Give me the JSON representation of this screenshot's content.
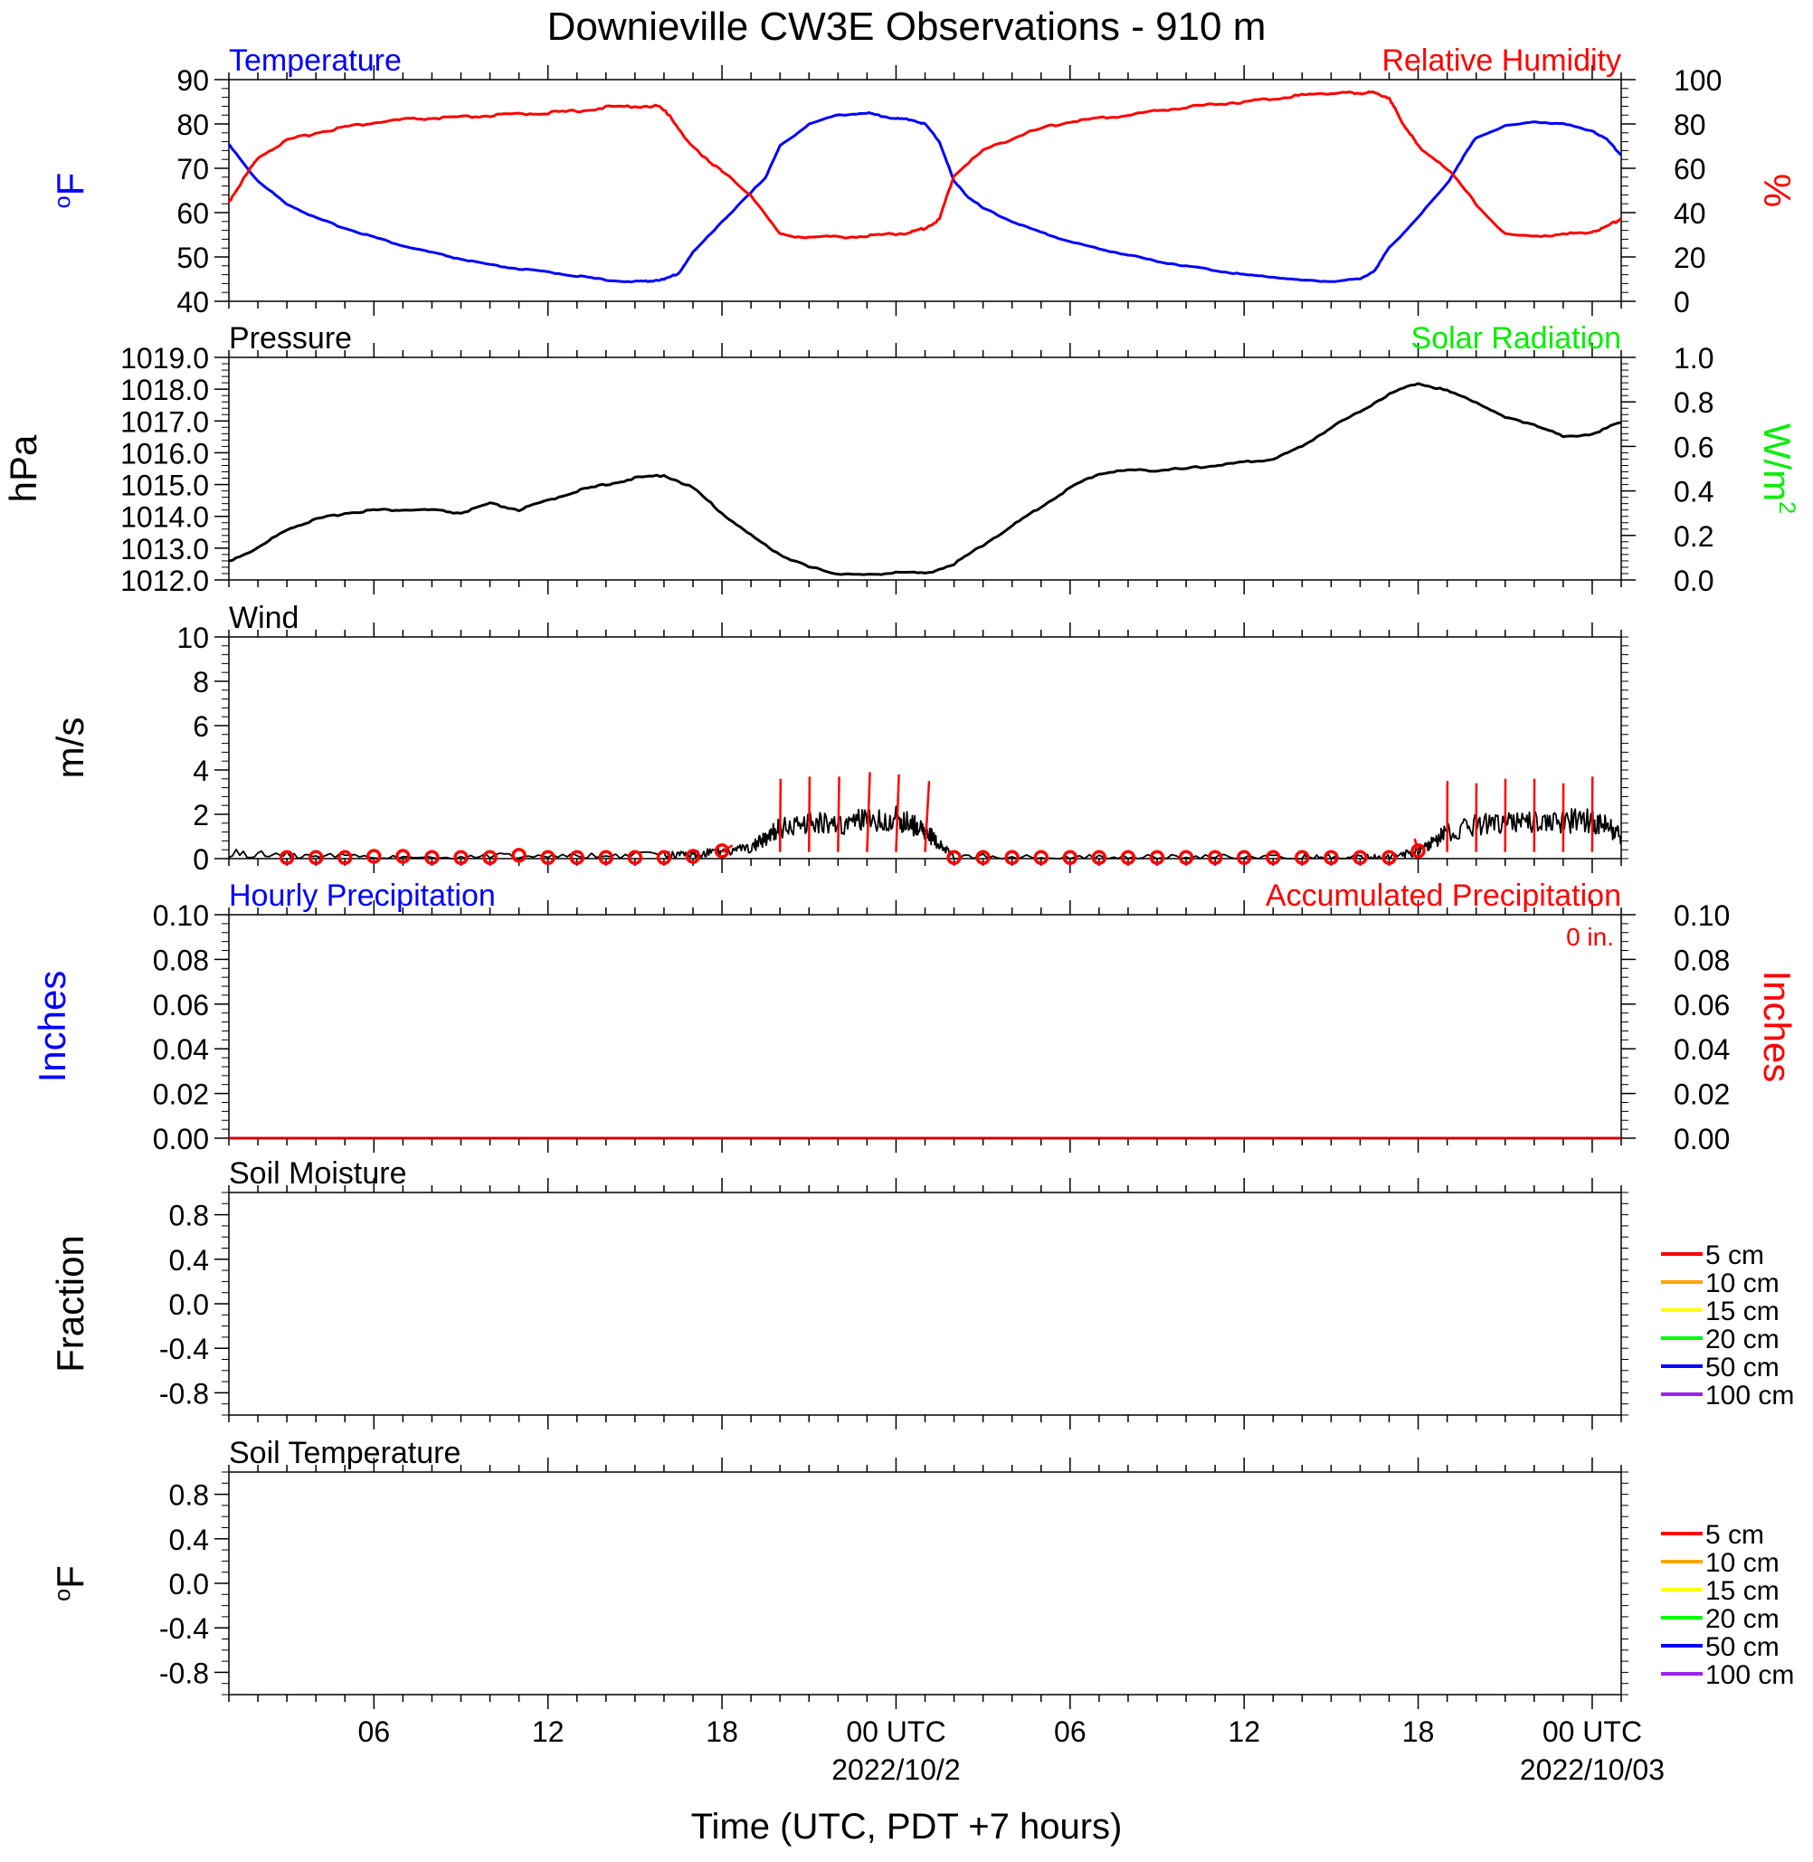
{
  "title": "Downieville CW3E Observations - 910 m",
  "xlabel": "Time (UTC, PDT +7 hours)",
  "colors": {
    "temperature": "#0000ff",
    "humidity": "#ff0000",
    "pressure": "#000000",
    "solar": "#00ee00",
    "wind": "#000000",
    "gust": "#ff0000",
    "precip_hourly": "#0000ff",
    "precip_accum": "#ff0000",
    "soil_5": "#ff0000",
    "soil_10": "#ffa500",
    "soil_15": "#ffff00",
    "soil_20": "#00ff00",
    "soil_50": "#0000ff",
    "soil_100": "#a020f0"
  },
  "x_axis": {
    "start_hour": 1,
    "end_hour": 49,
    "ticks": [
      {
        "hour": 6,
        "label": "06",
        "sub": ""
      },
      {
        "hour": 12,
        "label": "12",
        "sub": ""
      },
      {
        "hour": 18,
        "label": "18",
        "sub": ""
      },
      {
        "hour": 24,
        "label": "00 UTC",
        "sub": "2022/10/2"
      },
      {
        "hour": 30,
        "label": "06",
        "sub": ""
      },
      {
        "hour": 36,
        "label": "12",
        "sub": ""
      },
      {
        "hour": 42,
        "label": "18",
        "sub": ""
      },
      {
        "hour": 48,
        "label": "00 UTC",
        "sub": "2022/10/03"
      }
    ]
  },
  "panels": {
    "temp_rh": {
      "left_title": "Temperature",
      "right_title": "Relative Humidity",
      "left_unit": "oF",
      "right_unit": "%",
      "left_ticks": [
        "40",
        "50",
        "60",
        "70",
        "80",
        "90"
      ],
      "right_ticks": [
        "0",
        "20",
        "40",
        "60",
        "80",
        "100"
      ]
    },
    "pressure": {
      "left_title": "Pressure",
      "right_title": "Solar Radiation",
      "left_unit": "hPa",
      "right_unit": "W/m2",
      "left_ticks": [
        "1012.0",
        "1013.0",
        "1014.0",
        "1015.0",
        "1016.0",
        "1017.0",
        "1018.0",
        "1019.0"
      ],
      "right_ticks": [
        "0.0",
        "0.2",
        "0.4",
        "0.6",
        "0.8",
        "1.0"
      ]
    },
    "wind": {
      "left_title": "Wind",
      "left_unit": "m/s",
      "left_ticks": [
        "0",
        "2",
        "4",
        "6",
        "8",
        "10"
      ]
    },
    "precip": {
      "left_title": "Hourly Precipitation",
      "right_title": "Accumulated Precipitation",
      "total_label": "0 in.",
      "left_unit": "Inches",
      "right_unit": "Inches",
      "left_ticks": [
        "0.00",
        "0.02",
        "0.04",
        "0.06",
        "0.08",
        "0.10"
      ],
      "right_ticks": [
        "0.00",
        "0.02",
        "0.04",
        "0.06",
        "0.08",
        "0.10"
      ]
    },
    "soil_moisture": {
      "left_title": "Soil Moisture",
      "left_unit": "Fraction",
      "left_ticks": [
        "-0.8",
        "-0.4",
        "0.0",
        "0.4",
        "0.8"
      ],
      "legend": [
        "5 cm",
        "10 cm",
        "15 cm",
        "20 cm",
        "50 cm",
        "100 cm"
      ]
    },
    "soil_temp": {
      "left_title": "Soil Temperature",
      "left_unit": "oF",
      "left_ticks": [
        "-0.8",
        "-0.4",
        "0.0",
        "0.4",
        "0.8"
      ],
      "legend": [
        "5 cm",
        "10 cm",
        "15 cm",
        "20 cm",
        "50 cm",
        "100 cm"
      ]
    }
  },
  "chart_data": [
    {
      "type": "line",
      "panel": "temp_rh",
      "title": "Temperature / Relative Humidity",
      "ylim_left": [
        40,
        90
      ],
      "ylim_right": [
        0,
        100
      ],
      "series": [
        {
          "name": "Temperature",
          "axis": "left",
          "unit": "oF",
          "x": [
            1,
            2,
            3,
            4,
            5,
            6,
            7,
            8,
            9,
            10,
            11,
            12,
            13,
            14,
            15,
            15.5,
            16,
            16.5,
            17,
            18,
            19,
            19.5,
            20,
            21,
            22,
            23,
            23.5,
            24,
            24.5,
            25,
            25.5,
            26,
            26.5,
            27,
            28,
            29,
            30,
            31,
            32,
            33,
            34,
            35,
            36,
            37,
            38,
            39,
            40,
            40.5,
            41,
            42,
            43,
            43.5,
            44,
            45,
            46,
            47,
            48,
            48.5,
            49
          ],
          "y": [
            75.5,
            67,
            62,
            58.8,
            56.5,
            54.5,
            52.5,
            51,
            49.5,
            48.2,
            47.3,
            46.6,
            45.7,
            44.8,
            44.4,
            44.6,
            44.9,
            46.3,
            51,
            58,
            64.5,
            68,
            75,
            80,
            82,
            82.5,
            81.8,
            81.2,
            81,
            80,
            76,
            67,
            63.5,
            61,
            58,
            55.5,
            53.5,
            51.8,
            50.5,
            49,
            48,
            47,
            46,
            45.5,
            44.7,
            44.5,
            45,
            47,
            52,
            59,
            66.5,
            72,
            77,
            79.5,
            80.5,
            80,
            78.5,
            76.5,
            73
          ]
        },
        {
          "name": "Relative Humidity",
          "axis": "right",
          "unit": "%",
          "x": [
            1,
            1.5,
            2,
            3,
            4,
            5,
            6,
            7,
            8,
            9,
            10,
            11,
            12,
            13,
            14,
            15,
            15.8,
            16.2,
            16.8,
            17.5,
            18,
            19,
            20,
            21,
            22,
            23,
            24,
            24.5,
            25,
            25.5,
            26,
            27,
            28,
            29,
            30,
            31,
            32,
            33,
            34,
            35,
            36,
            37,
            38,
            39,
            39.5,
            40,
            40.5,
            41,
            41.3,
            41.7,
            42,
            43,
            44,
            45,
            46,
            47,
            48,
            48.5,
            49
          ],
          "y": [
            45,
            55,
            65,
            72.5,
            76,
            78.7,
            80.5,
            82,
            82.5,
            83,
            83.7,
            84.5,
            85,
            85.8,
            87.5,
            88,
            88,
            84,
            72,
            64,
            58.5,
            48,
            30,
            29,
            29,
            29.4,
            30.5,
            31,
            33,
            37,
            57,
            68,
            73.5,
            78,
            81,
            82.5,
            84,
            86,
            87.5,
            89,
            90,
            91.5,
            93,
            94,
            94,
            94,
            94,
            92,
            84,
            76,
            70,
            60,
            44,
            30,
            29.5,
            30,
            31.5,
            33.5,
            37.5
          ]
        }
      ]
    },
    {
      "type": "line",
      "panel": "pressure",
      "title": "Pressure",
      "ylim": [
        1012,
        1019
      ],
      "series": [
        {
          "name": "Pressure",
          "unit": "hPa",
          "x": [
            1,
            2,
            3,
            4,
            5,
            6,
            7,
            8,
            9,
            10,
            11,
            12,
            13,
            14,
            15,
            16,
            17,
            18,
            19,
            20,
            21,
            22,
            23,
            24,
            25,
            26,
            27,
            28,
            29,
            30,
            31,
            32,
            33,
            34,
            35,
            36,
            37,
            38,
            39,
            40,
            41,
            42,
            43,
            44,
            45,
            46,
            47,
            48,
            49
          ],
          "y": [
            1012.6,
            1013.0,
            1013.6,
            1013.9,
            1014.1,
            1014.2,
            1014.2,
            1014.2,
            1014.1,
            1014.4,
            1014.2,
            1014.5,
            1014.8,
            1015.0,
            1015.2,
            1015.3,
            1014.9,
            1014.1,
            1013.4,
            1012.8,
            1012.4,
            1012.2,
            1012.15,
            1012.25,
            1012.2,
            1012.5,
            1013.1,
            1013.7,
            1014.3,
            1014.9,
            1015.35,
            1015.45,
            1015.45,
            1015.5,
            1015.6,
            1015.7,
            1015.8,
            1016.2,
            1016.8,
            1017.3,
            1017.85,
            1018.2,
            1017.95,
            1017.6,
            1017.1,
            1016.9,
            1016.5,
            1016.6,
            1016.95
          ]
        }
      ]
    },
    {
      "type": "line",
      "panel": "wind",
      "title": "Wind",
      "ylim": [
        0,
        10
      ],
      "series": [
        {
          "name": "Wind speed",
          "unit": "m/s",
          "x": [
            1,
            4,
            8,
            12,
            16,
            17,
            18,
            19,
            19.5,
            20,
            21,
            22,
            23,
            24,
            24.5,
            25,
            25.5,
            26,
            30,
            34,
            38,
            40,
            41,
            42,
            42.5,
            43,
            44,
            45,
            46,
            47,
            48,
            48.5,
            49
          ],
          "y": [
            0.25,
            0.1,
            0.1,
            0.1,
            0.15,
            0.2,
            0.3,
            0.5,
            0.9,
            1.4,
            1.6,
            1.6,
            1.7,
            1.8,
            1.6,
            1.3,
            0.6,
            0.1,
            0.05,
            0.05,
            0.05,
            0.05,
            0.1,
            0.3,
            0.7,
            1.2,
            1.5,
            1.6,
            1.7,
            1.7,
            1.7,
            1.5,
            1.0
          ]
        },
        {
          "name": "Hourly wind",
          "x": [
            3,
            4,
            5,
            6,
            7,
            8,
            9,
            10,
            11,
            12,
            13,
            14,
            15,
            16,
            17,
            18,
            26,
            27,
            28,
            29,
            30,
            31,
            32,
            33,
            34,
            35,
            36,
            37,
            38,
            39,
            40,
            41,
            42
          ],
          "y": [
            0.05,
            0.05,
            0.05,
            0.1,
            0.1,
            0.05,
            0.05,
            0.05,
            0.15,
            0.05,
            0.05,
            0.05,
            0.05,
            0.05,
            0.1,
            0.35,
            0.05,
            0.05,
            0.05,
            0.05,
            0.05,
            0.05,
            0.05,
            0.05,
            0.05,
            0.05,
            0.05,
            0.05,
            0.05,
            0.05,
            0.05,
            0.05,
            0.35
          ]
        },
        {
          "name": "Wind direction",
          "x": [
            18,
            20,
            21,
            22,
            23,
            24,
            25,
            42,
            43,
            44,
            45,
            46,
            47,
            48
          ],
          "y_dx": [
            0.9,
            0.05,
            0.05,
            0.1,
            0.25,
            0.25,
            0.35,
            -0.3,
            0.02,
            0.02,
            0.02,
            0.02,
            0.02,
            0.02
          ],
          "y_dy": [
            0.3,
            3.3,
            3.4,
            3.4,
            3.6,
            3.5,
            3.2,
            0.6,
            3.2,
            3.1,
            3.3,
            3.3,
            3.1,
            3.4
          ]
        }
      ]
    },
    {
      "type": "line",
      "panel": "precip",
      "title": "Precipitation",
      "ylim": [
        0,
        0.1
      ],
      "series": [
        {
          "name": "Hourly Precipitation",
          "x": [
            1,
            49
          ],
          "y": [
            0,
            0
          ]
        },
        {
          "name": "Accumulated Precipitation",
          "x": [
            1,
            49
          ],
          "y": [
            0,
            0
          ]
        }
      ]
    }
  ]
}
